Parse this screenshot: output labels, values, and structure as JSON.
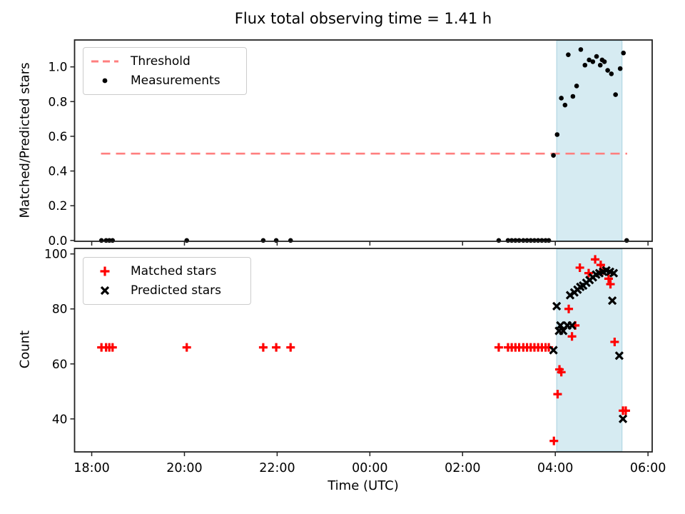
{
  "figure": {
    "background": "#ffffff"
  },
  "colors": {
    "threshold": "#ff7f7f",
    "measurements": "#000000",
    "matched": "#ff0000",
    "predicted": "#000000",
    "shade": "#add8e6",
    "spine": "#222222"
  },
  "chart_data": [
    {
      "type": "scatter",
      "panel": "top",
      "title": "Flux total observing time = 1.41 h",
      "ylabel": "Matched/Predicted stars",
      "ylim": [
        -0.005,
        1.155
      ],
      "yticks": [
        0.0,
        0.2,
        0.4,
        0.6,
        0.8,
        1.0
      ],
      "ytick_labels": [
        "0.0",
        "0.2",
        "0.4",
        "0.6",
        "0.8",
        "1.0"
      ],
      "x_unit": "hours_after_18:00_UTC",
      "xlim": [
        -0.37,
        12.09
      ],
      "xticks": [
        0,
        2,
        4,
        6,
        8,
        10,
        12
      ],
      "shaded_span": {
        "t0": 10.03,
        "t1": 11.44
      },
      "threshold": {
        "label": "Threshold",
        "value": 0.5,
        "t0": 0.2,
        "t1": 11.55
      },
      "legend_position": "upper left",
      "grid": false,
      "series": [
        {
          "name": "Measurements",
          "marker": "dot",
          "color": "#000000",
          "points": [
            [
              0.21,
              0
            ],
            [
              0.31,
              0
            ],
            [
              0.38,
              0
            ],
            [
              0.45,
              0
            ],
            [
              2.05,
              0
            ],
            [
              3.7,
              0
            ],
            [
              3.98,
              0
            ],
            [
              4.29,
              0
            ],
            [
              8.78,
              0
            ],
            [
              8.98,
              0
            ],
            [
              9.06,
              0
            ],
            [
              9.14,
              0
            ],
            [
              9.22,
              0
            ],
            [
              9.31,
              0
            ],
            [
              9.39,
              0
            ],
            [
              9.47,
              0
            ],
            [
              9.55,
              0
            ],
            [
              9.63,
              0
            ],
            [
              9.71,
              0
            ],
            [
              9.79,
              0
            ],
            [
              9.86,
              0
            ],
            [
              9.96,
              0.49
            ],
            [
              10.04,
              0.61
            ],
            [
              10.13,
              0.82
            ],
            [
              10.21,
              0.78
            ],
            [
              10.28,
              1.07
            ],
            [
              10.38,
              0.83
            ],
            [
              10.46,
              0.89
            ],
            [
              10.55,
              1.1
            ],
            [
              10.64,
              1.01
            ],
            [
              10.73,
              1.04
            ],
            [
              10.81,
              1.03
            ],
            [
              10.89,
              1.06
            ],
            [
              10.97,
              1.01
            ],
            [
              11.01,
              1.04
            ],
            [
              11.06,
              1.03
            ],
            [
              11.13,
              0.98
            ],
            [
              11.21,
              0.96
            ],
            [
              11.3,
              0.84
            ],
            [
              11.4,
              0.99
            ],
            [
              11.47,
              1.08
            ],
            [
              11.54,
              0
            ]
          ]
        }
      ]
    },
    {
      "type": "scatter",
      "panel": "bottom",
      "ylabel": "Count",
      "xlabel": "Time (UTC)",
      "ylim": [
        28,
        102
      ],
      "yticks": [
        40,
        60,
        80,
        100
      ],
      "ytick_labels": [
        "40",
        "60",
        "80",
        "100"
      ],
      "x_unit": "hours_after_18:00_UTC",
      "xlim": [
        -0.37,
        12.09
      ],
      "xticks": [
        0,
        2,
        4,
        6,
        8,
        10,
        12
      ],
      "xtick_labels": [
        "18:00",
        "20:00",
        "22:00",
        "00:00",
        "02:00",
        "04:00",
        "06:00"
      ],
      "shaded_span": {
        "t0": 10.03,
        "t1": 11.44
      },
      "legend_position": "upper left",
      "grid": false,
      "series": [
        {
          "name": "Matched stars",
          "marker": "plus",
          "color": "#ff0000",
          "points": [
            [
              0.21,
              66
            ],
            [
              0.31,
              66
            ],
            [
              0.38,
              66
            ],
            [
              0.45,
              66
            ],
            [
              2.05,
              66
            ],
            [
              3.7,
              66
            ],
            [
              3.98,
              66
            ],
            [
              4.29,
              66
            ],
            [
              8.78,
              66
            ],
            [
              8.98,
              66
            ],
            [
              9.06,
              66
            ],
            [
              9.14,
              66
            ],
            [
              9.22,
              66
            ],
            [
              9.31,
              66
            ],
            [
              9.39,
              66
            ],
            [
              9.47,
              66
            ],
            [
              9.55,
              66
            ],
            [
              9.63,
              66
            ],
            [
              9.71,
              66
            ],
            [
              9.79,
              66
            ],
            [
              9.86,
              66
            ],
            [
              9.97,
              32
            ],
            [
              10.05,
              49
            ],
            [
              10.09,
              58
            ],
            [
              10.13,
              57
            ],
            [
              10.29,
              80
            ],
            [
              10.36,
              70
            ],
            [
              10.43,
              74
            ],
            [
              10.53,
              95
            ],
            [
              10.72,
              93
            ],
            [
              10.86,
              98
            ],
            [
              10.98,
              96
            ],
            [
              11.04,
              94
            ],
            [
              11.15,
              91
            ],
            [
              11.19,
              89
            ],
            [
              11.28,
              68
            ],
            [
              11.46,
              43
            ],
            [
              11.52,
              43
            ]
          ]
        },
        {
          "name": "Predicted stars",
          "marker": "x",
          "color": "#000000",
          "points": [
            [
              9.96,
              65
            ],
            [
              10.03,
              81
            ],
            [
              10.08,
              72
            ],
            [
              10.11,
              74
            ],
            [
              10.17,
              72
            ],
            [
              10.26,
              74
            ],
            [
              10.36,
              74
            ],
            [
              10.32,
              85
            ],
            [
              10.41,
              86
            ],
            [
              10.48,
              87
            ],
            [
              10.54,
              88
            ],
            [
              10.6,
              88.5
            ],
            [
              10.67,
              89.5
            ],
            [
              10.74,
              90.5
            ],
            [
              10.81,
              91.5
            ],
            [
              10.88,
              92.5
            ],
            [
              10.95,
              93
            ],
            [
              11.03,
              93.5
            ],
            [
              11.1,
              94
            ],
            [
              11.18,
              93.5
            ],
            [
              11.26,
              93
            ],
            [
              11.23,
              83
            ],
            [
              11.38,
              63
            ],
            [
              11.46,
              40
            ]
          ]
        }
      ]
    }
  ]
}
